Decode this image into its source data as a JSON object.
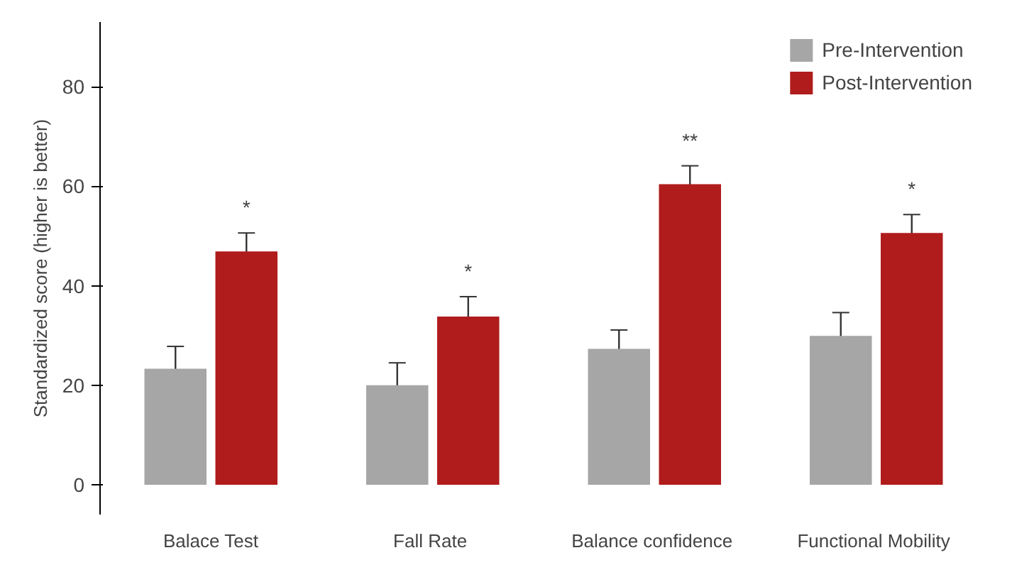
{
  "chart_data": {
    "type": "bar",
    "ylabel": "Standardized score (higher is better)",
    "categories": [
      "Balace Test",
      "Fall  Rate",
      "Balance  confidence",
      "Functional  Mobility"
    ],
    "series": [
      {
        "name": "Pre-Intervention",
        "color": "#a6a6a6",
        "values": [
          23.3,
          20,
          27.3,
          29.9
        ],
        "errors": [
          4.5,
          4.5,
          3.8,
          4.7
        ]
      },
      {
        "name": "Post-Intervention",
        "color": "#b01c1c",
        "values": [
          46.9,
          33.8,
          60.4,
          50.6
        ],
        "errors": [
          3.7,
          4,
          3.7,
          3.7
        ]
      }
    ],
    "ylim": [
      -6,
      93
    ],
    "yticks": [
      0,
      20,
      40,
      60,
      80
    ],
    "grid": false,
    "legend": "top right",
    "annotations": [
      "*",
      "*",
      "**",
      "*"
    ]
  }
}
